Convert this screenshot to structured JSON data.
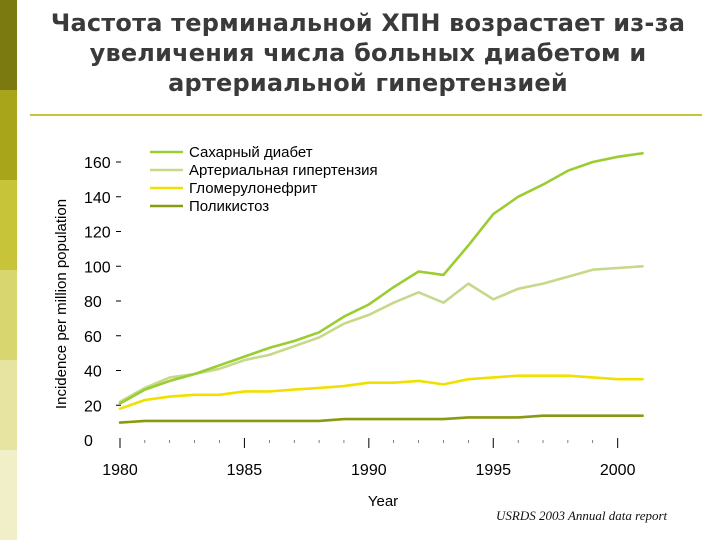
{
  "slide": {
    "title": "Частота терминальной ХПН возрастает из-за увеличения числа больных диабетом и артериальной гипертензией",
    "source": "USRDS 2003 Annual data report",
    "accent_colors": [
      "#7a7a10",
      "#a9a51a",
      "#c8c43a",
      "#d8d66e",
      "#e6e4a0",
      "#f0efc8"
    ]
  },
  "chart_data": {
    "type": "line",
    "xlabel": "Year",
    "ylabel": "Incidence per million population",
    "xlim": [
      1980,
      2001.5
    ],
    "ylim": [
      0,
      160
    ],
    "x_ticks": [
      "1980",
      "1985",
      "1990",
      "1995",
      "2000"
    ],
    "y_ticks": [
      "0",
      "20",
      "40",
      "60",
      "80",
      "100",
      "120",
      "140",
      "160"
    ],
    "grid": false,
    "legend_position": "top-left",
    "x": [
      1980,
      1981,
      1982,
      1983,
      1984,
      1985,
      1986,
      1987,
      1988,
      1989,
      1990,
      1991,
      1992,
      1993,
      1994,
      1995,
      1996,
      1997,
      1998,
      1999,
      2000,
      2001
    ],
    "series": [
      {
        "name": "Сахарный диабет",
        "color": "#9acd32",
        "values": [
          21,
          29,
          34,
          38,
          43,
          48,
          53,
          57,
          62,
          71,
          78,
          88,
          97,
          95,
          112,
          130,
          140,
          147,
          155,
          160,
          163,
          165
        ]
      },
      {
        "name": "Артериальная гипертензия",
        "color": "#c6d98a",
        "values": [
          22,
          30,
          36,
          38,
          41,
          46,
          49,
          54,
          59,
          67,
          72,
          79,
          85,
          79,
          90,
          81,
          87,
          90,
          94,
          98,
          99,
          100
        ]
      },
      {
        "name": "Гломерулонефрит",
        "color": "#f0e000",
        "values": [
          18,
          23,
          25,
          26,
          26,
          28,
          28,
          29,
          30,
          31,
          33,
          33,
          34,
          32,
          35,
          36,
          37,
          37,
          37,
          36,
          35,
          35
        ]
      },
      {
        "name": "Поликистоз",
        "color": "#8a9a10",
        "values": [
          10,
          11,
          11,
          11,
          11,
          11,
          11,
          11,
          11,
          12,
          12,
          12,
          12,
          12,
          13,
          13,
          13,
          14,
          14,
          14,
          14,
          14
        ]
      }
    ]
  }
}
